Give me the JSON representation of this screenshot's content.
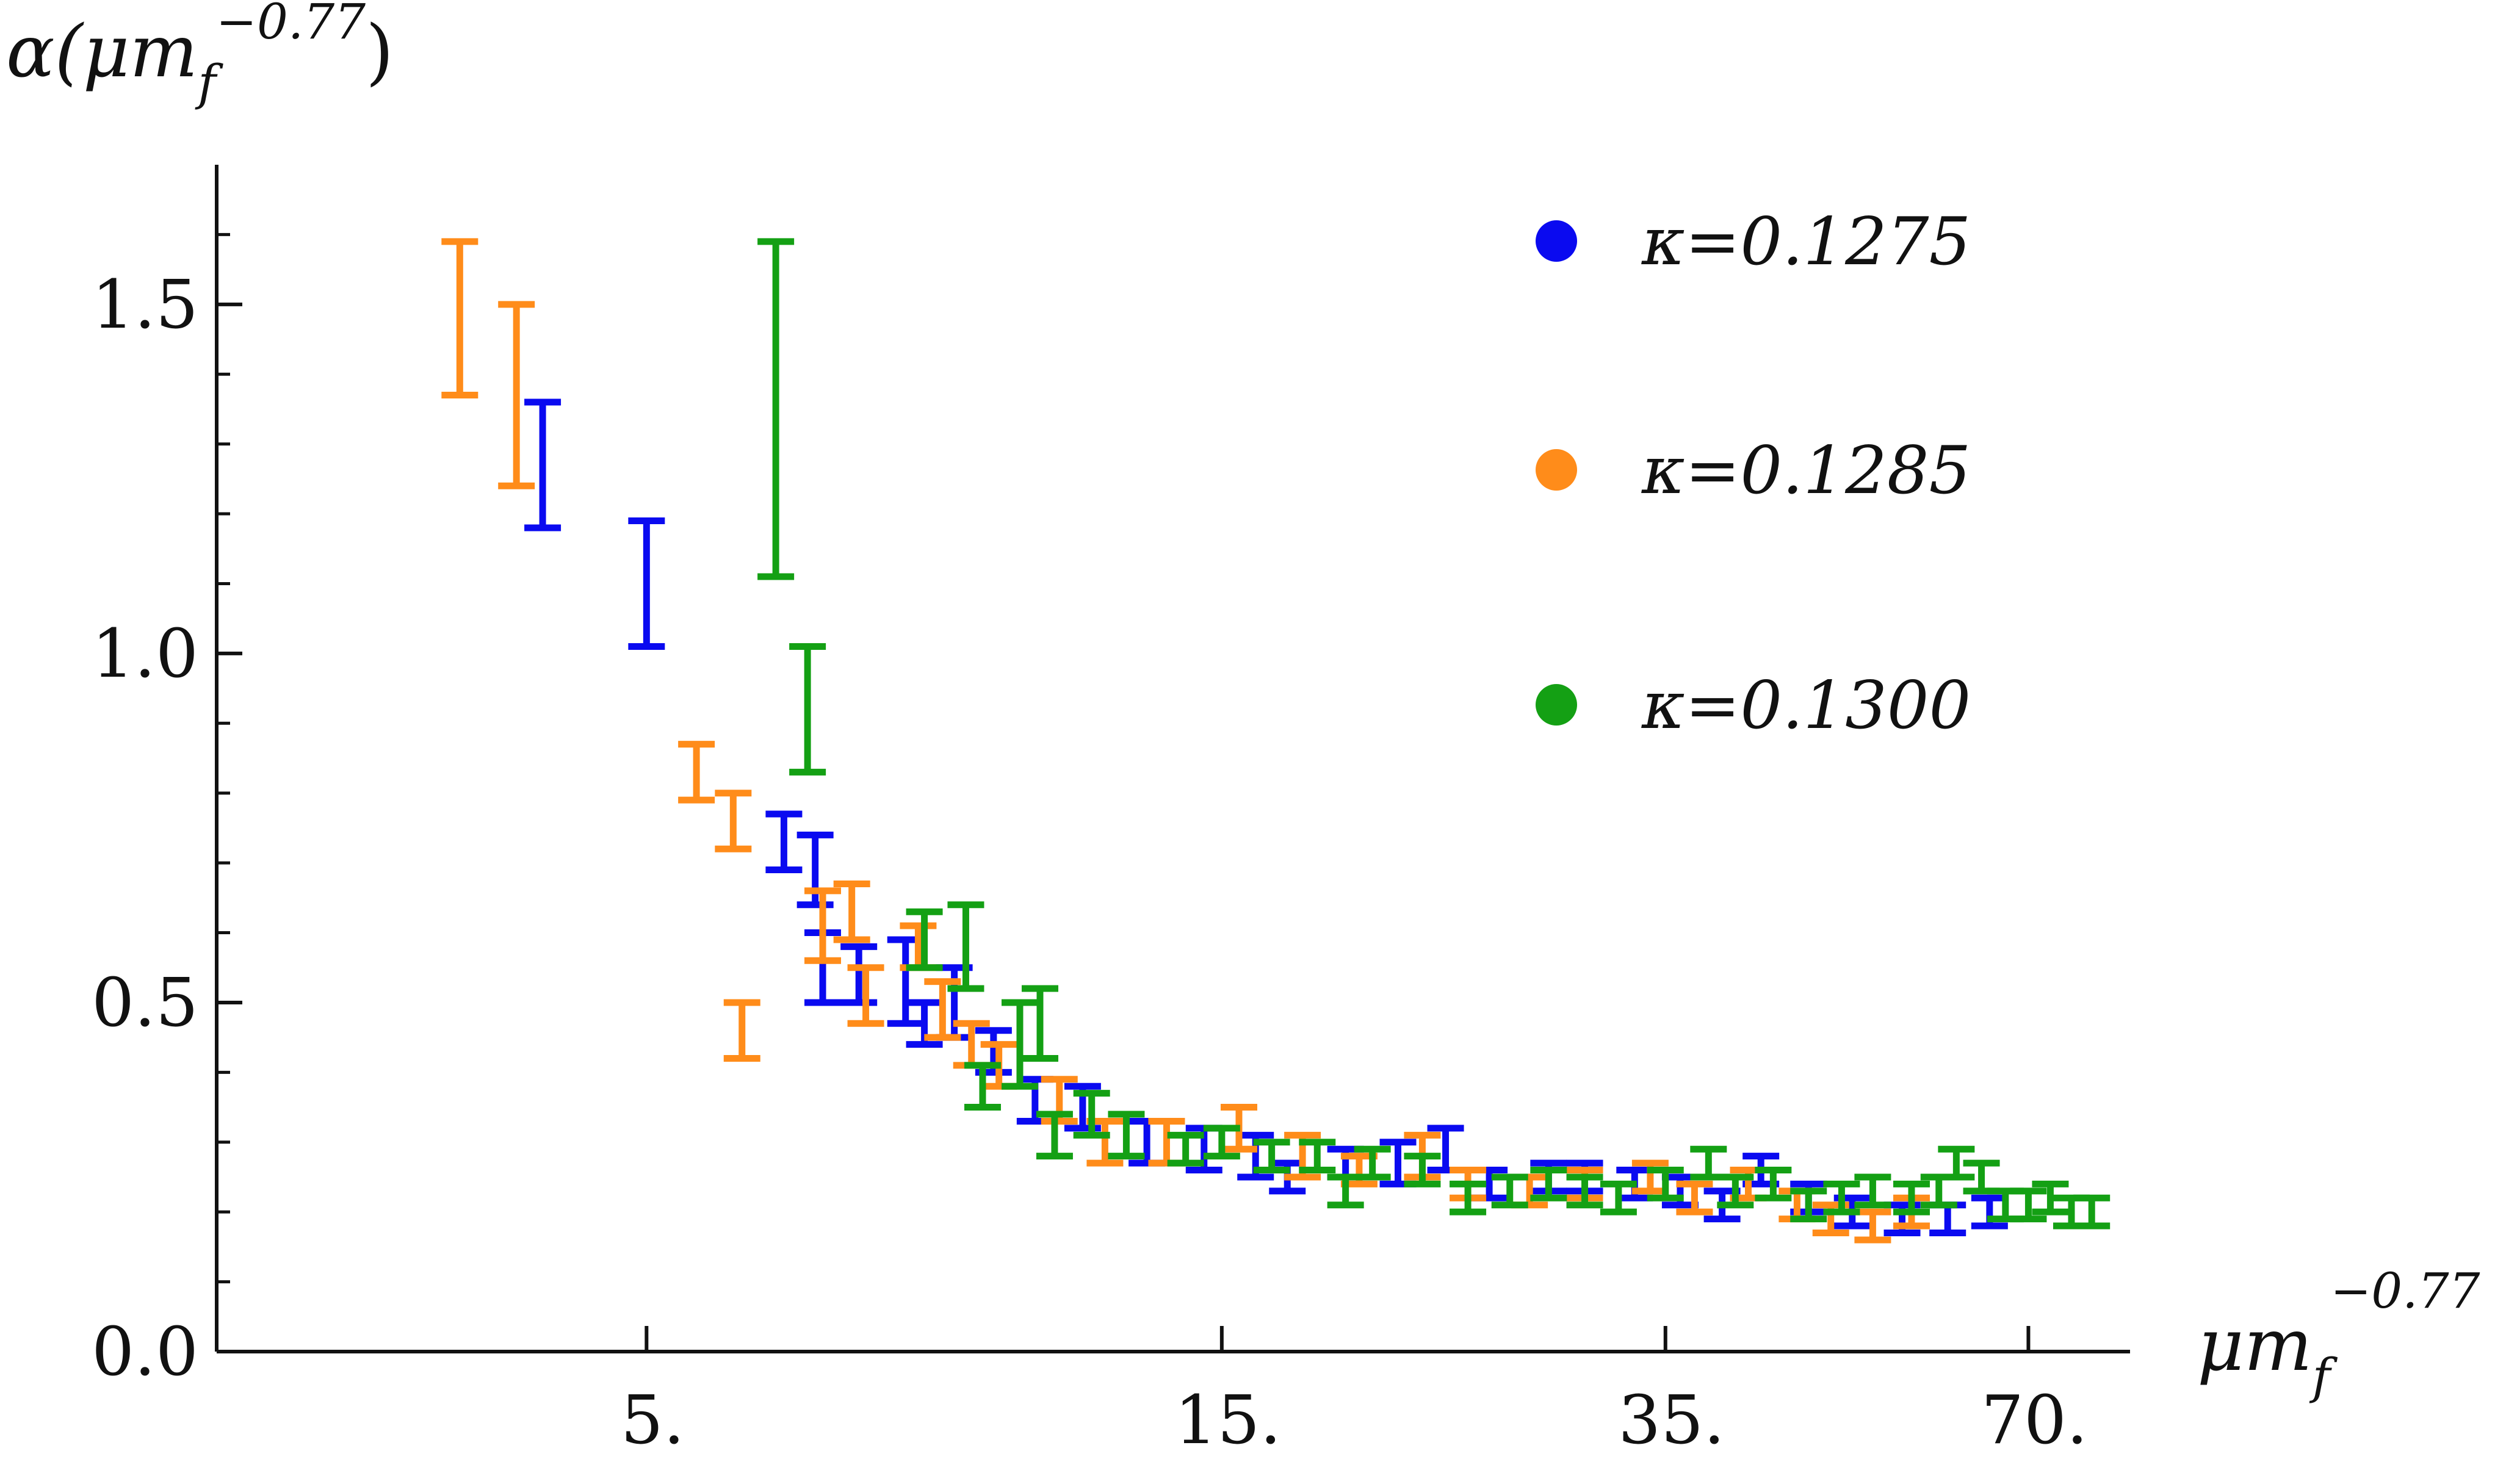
{
  "chart_data": {
    "type": "scatter",
    "error_bars": true,
    "x_scale": "log",
    "xlabel": {
      "base": "μm",
      "sub": "f",
      "sup": "−0.77"
    },
    "ylabel": {
      "prefix": "α(μm",
      "sub": "f",
      "sup": "−0.77",
      "suffix": ")"
    },
    "xlim": [
      2.2,
      85
    ],
    "ylim": [
      0,
      1.7
    ],
    "x_ticks": [
      {
        "value": 5,
        "label": "5."
      },
      {
        "value": 15,
        "label": "15."
      },
      {
        "value": 35,
        "label": "35."
      },
      {
        "value": 70,
        "label": "70."
      }
    ],
    "y_ticks": [
      {
        "value": 0.0,
        "label": "0.0"
      },
      {
        "value": 0.5,
        "label": "0.5"
      },
      {
        "value": 1.0,
        "label": "1.0"
      },
      {
        "value": 1.5,
        "label": "1.5"
      }
    ],
    "legend_position": "top-right",
    "series": [
      {
        "name": "κ=0.1275",
        "color": "#0a0af0",
        "points": [
          [
            4.1,
            1.27,
            0.09
          ],
          [
            5.0,
            1.1,
            0.09
          ],
          [
            6.5,
            0.73,
            0.04
          ],
          [
            6.9,
            0.69,
            0.05
          ],
          [
            7.0,
            0.55,
            0.05
          ],
          [
            7.5,
            0.54,
            0.04
          ],
          [
            8.2,
            0.53,
            0.06
          ],
          [
            8.5,
            0.47,
            0.03
          ],
          [
            9.0,
            0.5,
            0.05
          ],
          [
            9.7,
            0.43,
            0.03
          ],
          [
            10.5,
            0.36,
            0.03
          ],
          [
            11.5,
            0.35,
            0.03
          ],
          [
            13,
            0.3,
            0.03
          ],
          [
            14.5,
            0.29,
            0.03
          ],
          [
            16,
            0.28,
            0.03
          ],
          [
            17,
            0.25,
            0.02
          ],
          [
            19,
            0.27,
            0.02
          ],
          [
            21,
            0.27,
            0.03
          ],
          [
            23,
            0.29,
            0.03
          ],
          [
            25,
            0.24,
            0.02
          ],
          [
            28,
            0.25,
            0.02
          ],
          [
            30,
            0.25,
            0.02
          ],
          [
            33,
            0.24,
            0.02
          ],
          [
            36,
            0.23,
            0.02
          ],
          [
            39,
            0.21,
            0.02
          ],
          [
            42,
            0.26,
            0.02
          ],
          [
            46,
            0.22,
            0.02
          ],
          [
            50,
            0.2,
            0.02
          ],
          [
            55,
            0.19,
            0.02
          ],
          [
            60,
            0.19,
            0.02
          ],
          [
            65,
            0.2,
            0.02
          ]
        ]
      },
      {
        "name": "κ=0.1285",
        "color": "#ff8c1a",
        "points": [
          [
            3.5,
            1.48,
            0.11
          ],
          [
            3.9,
            1.37,
            0.13
          ],
          [
            5.5,
            0.83,
            0.04
          ],
          [
            5.9,
            0.76,
            0.04
          ],
          [
            6.0,
            0.46,
            0.04
          ],
          [
            7.0,
            0.61,
            0.05
          ],
          [
            7.4,
            0.63,
            0.04
          ],
          [
            7.6,
            0.51,
            0.04
          ],
          [
            8.4,
            0.58,
            0.03
          ],
          [
            8.8,
            0.49,
            0.04
          ],
          [
            9.3,
            0.44,
            0.03
          ],
          [
            9.8,
            0.41,
            0.03
          ],
          [
            11,
            0.36,
            0.03
          ],
          [
            12,
            0.3,
            0.03
          ],
          [
            13.5,
            0.3,
            0.03
          ],
          [
            15.5,
            0.32,
            0.03
          ],
          [
            17.5,
            0.28,
            0.03
          ],
          [
            19.5,
            0.26,
            0.02
          ],
          [
            22,
            0.28,
            0.03
          ],
          [
            24,
            0.24,
            0.02
          ],
          [
            27,
            0.23,
            0.02
          ],
          [
            30,
            0.24,
            0.02
          ],
          [
            34,
            0.25,
            0.02
          ],
          [
            37,
            0.22,
            0.02
          ],
          [
            41,
            0.24,
            0.02
          ],
          [
            45,
            0.21,
            0.02
          ],
          [
            48,
            0.19,
            0.02
          ],
          [
            52,
            0.18,
            0.02
          ],
          [
            56,
            0.2,
            0.02
          ]
        ]
      },
      {
        "name": "κ=0.1300",
        "color": "#14a014",
        "points": [
          [
            6.4,
            1.35,
            0.24
          ],
          [
            6.8,
            0.92,
            0.09
          ],
          [
            8.5,
            0.59,
            0.04
          ],
          [
            9.2,
            0.58,
            0.06
          ],
          [
            9.5,
            0.38,
            0.03
          ],
          [
            10.2,
            0.44,
            0.06
          ],
          [
            10.6,
            0.47,
            0.05
          ],
          [
            10.9,
            0.31,
            0.03
          ],
          [
            11.7,
            0.34,
            0.03
          ],
          [
            12.5,
            0.31,
            0.03
          ],
          [
            14,
            0.29,
            0.02
          ],
          [
            15,
            0.3,
            0.02
          ],
          [
            16.5,
            0.28,
            0.02
          ],
          [
            18,
            0.28,
            0.02
          ],
          [
            19,
            0.23,
            0.02
          ],
          [
            20,
            0.27,
            0.02
          ],
          [
            22,
            0.26,
            0.02
          ],
          [
            24,
            0.22,
            0.02
          ],
          [
            26,
            0.23,
            0.02
          ],
          [
            28,
            0.24,
            0.02
          ],
          [
            30,
            0.23,
            0.02
          ],
          [
            32,
            0.22,
            0.02
          ],
          [
            35,
            0.24,
            0.02
          ],
          [
            38,
            0.27,
            0.02
          ],
          [
            40,
            0.23,
            0.02
          ],
          [
            43,
            0.24,
            0.02
          ],
          [
            46,
            0.21,
            0.02
          ],
          [
            49,
            0.22,
            0.02
          ],
          [
            52,
            0.23,
            0.02
          ],
          [
            56,
            0.22,
            0.02
          ],
          [
            59,
            0.23,
            0.02
          ],
          [
            61,
            0.27,
            0.02
          ],
          [
            64,
            0.25,
            0.02
          ],
          [
            67,
            0.21,
            0.02
          ],
          [
            70,
            0.21,
            0.02
          ],
          [
            73,
            0.22,
            0.02
          ],
          [
            76,
            0.2,
            0.02
          ],
          [
            79,
            0.2,
            0.02
          ]
        ]
      }
    ]
  }
}
